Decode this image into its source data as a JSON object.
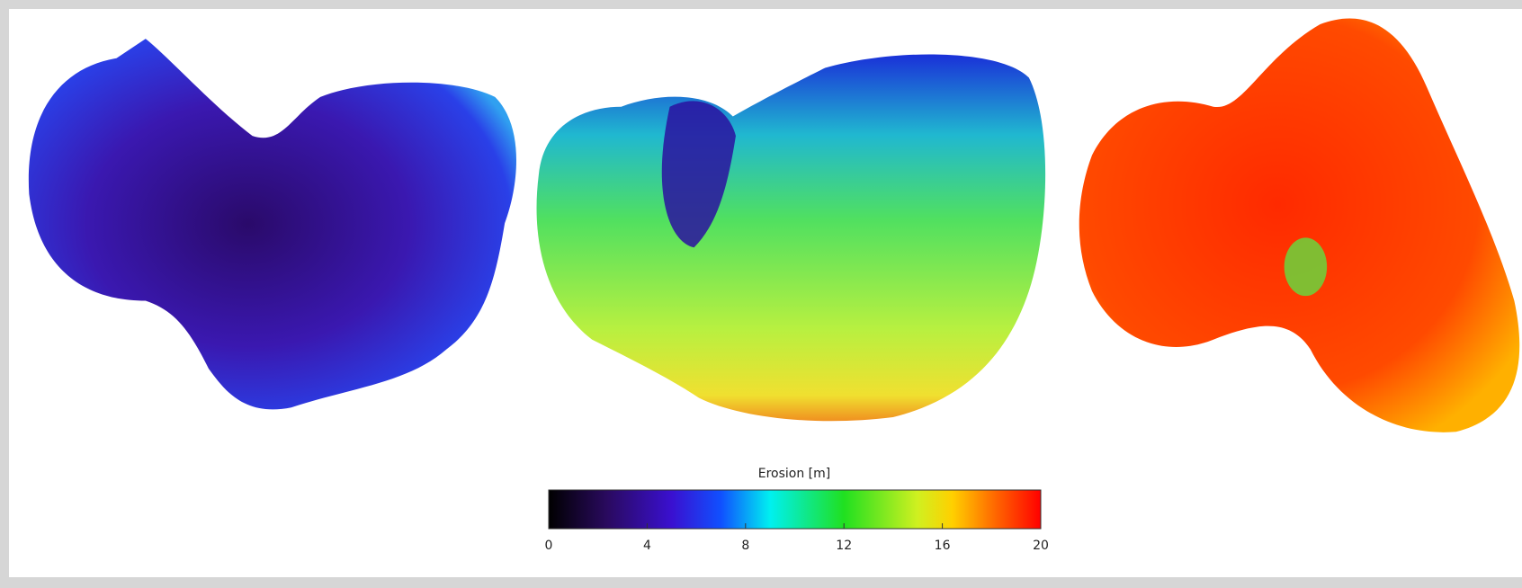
{
  "colorbar": {
    "label": "Erosion [m]",
    "lim": [
      0,
      20
    ],
    "ticks": [
      0,
      4,
      8,
      12,
      16,
      20
    ]
  }
}
